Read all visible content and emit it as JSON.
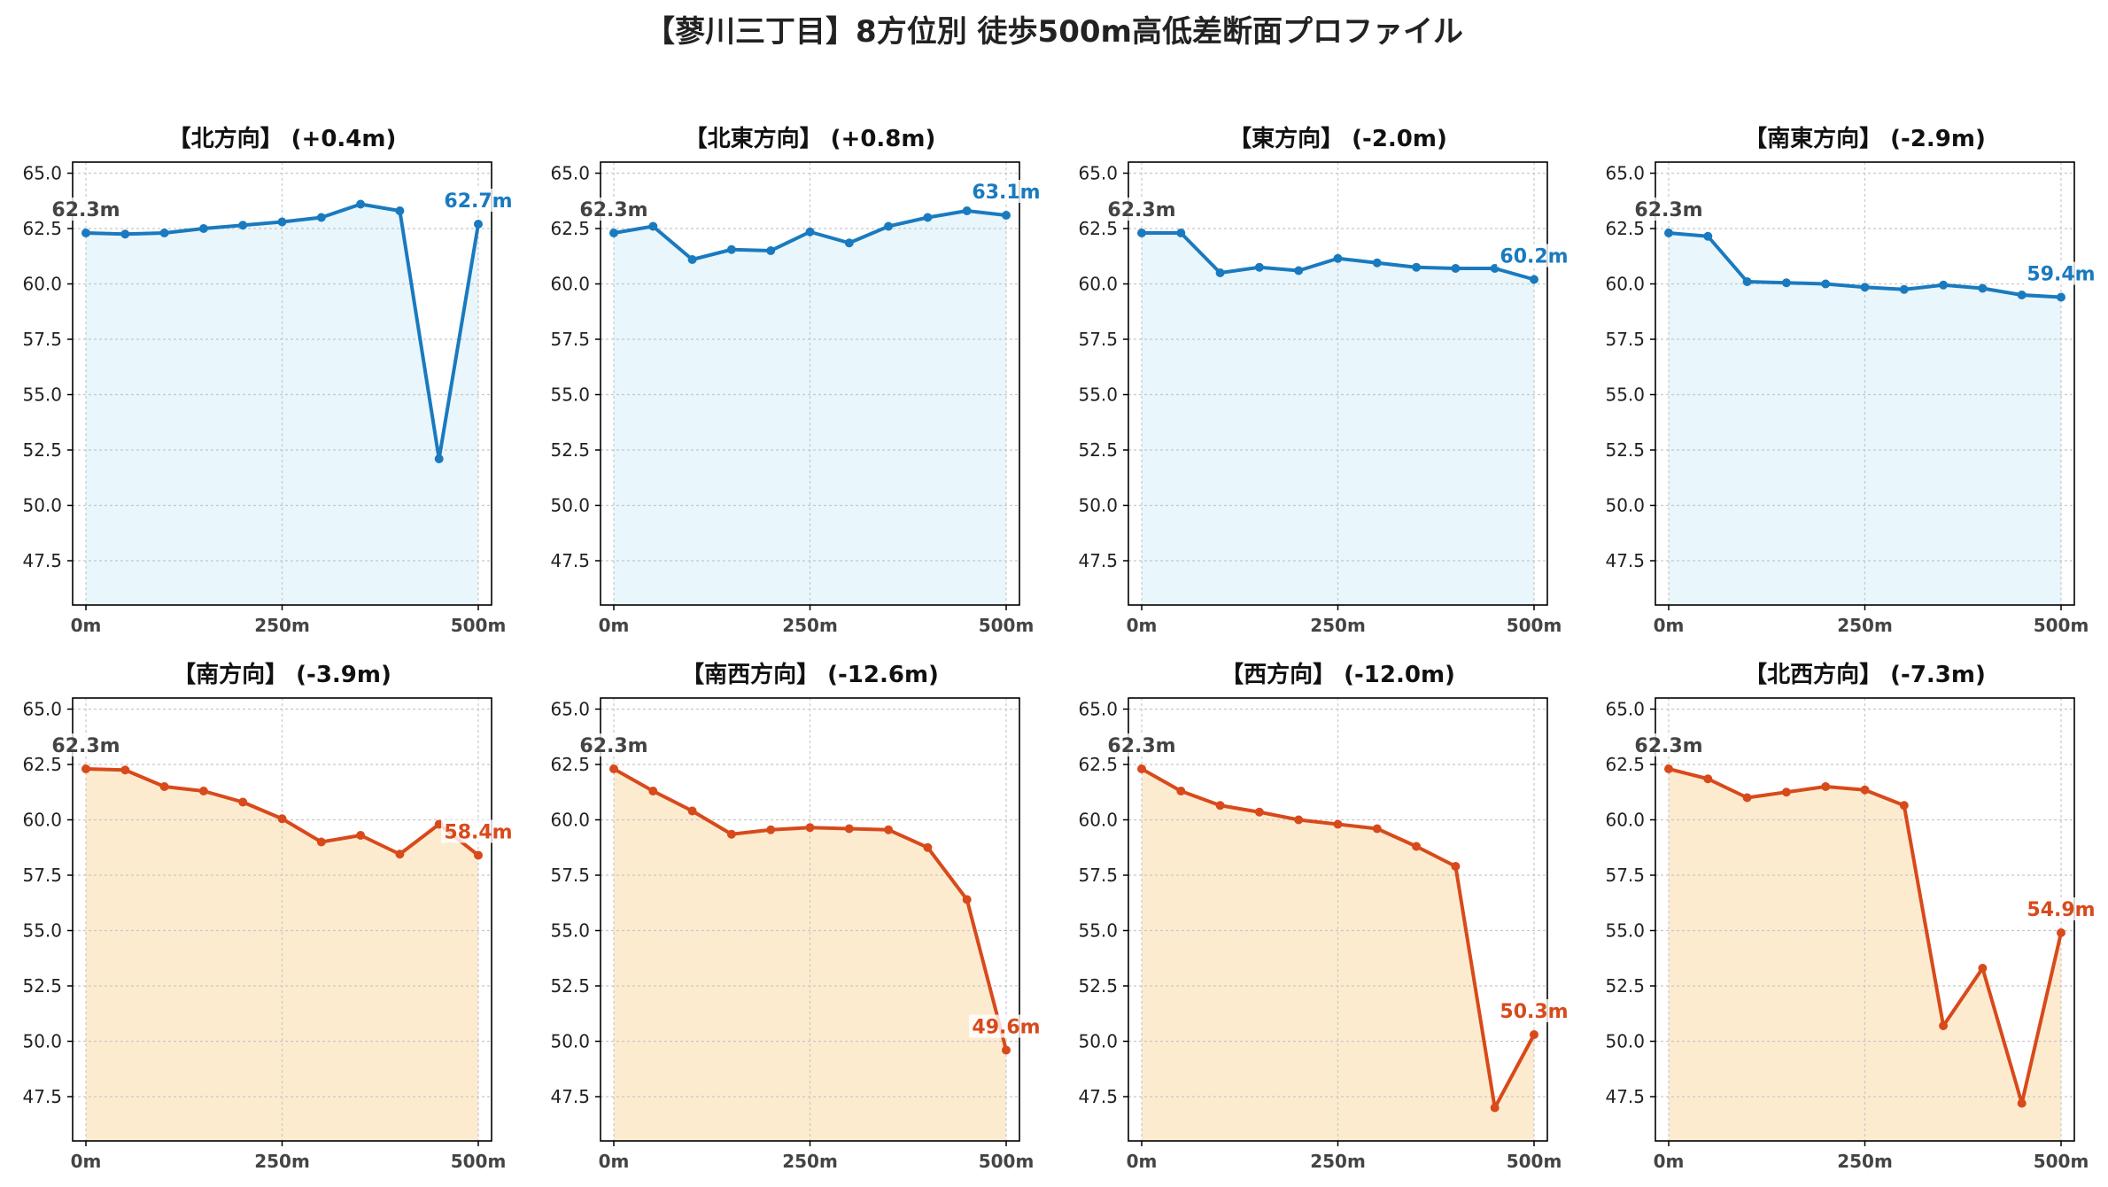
{
  "suptitle": "【蓼川三丁目】8方位別 徒歩500m高低差断面プロファイル",
  "colors": {
    "up_line": "#1a7abf",
    "up_fill": "#e9f6fb",
    "down_line": "#d84a1b",
    "down_fill": "#fdebd0",
    "start_label": "#444444",
    "grid": "#c8c8c8"
  },
  "chart_data": [
    {
      "type": "line",
      "title": "【北方向】 (+0.4m)",
      "trend": "up",
      "xlim": [
        0,
        500
      ],
      "ylim": [
        45.5,
        65.5
      ],
      "x": [
        0,
        50,
        100,
        150,
        200,
        250,
        300,
        350,
        400,
        450,
        500
      ],
      "y": [
        62.3,
        62.25,
        62.3,
        62.5,
        62.65,
        62.8,
        63.0,
        63.6,
        63.3,
        52.1,
        62.7
      ],
      "xticks": [
        0,
        250,
        500
      ],
      "xtick_labels": [
        "0m",
        "250m",
        "500m"
      ],
      "yticks": [
        47.5,
        50.0,
        52.5,
        55.0,
        57.5,
        60.0,
        62.5,
        65.0
      ],
      "ytick_labels": [
        "47.5",
        "50.0",
        "52.5",
        "55.0",
        "57.5",
        "60.0",
        "62.5",
        "65.0"
      ],
      "start_label": "62.3m",
      "end_label": "62.7m",
      "grid": true
    },
    {
      "type": "line",
      "title": "【北東方向】 (+0.8m)",
      "trend": "up",
      "xlim": [
        0,
        500
      ],
      "ylim": [
        45.5,
        65.5
      ],
      "x": [
        0,
        50,
        100,
        150,
        200,
        250,
        300,
        350,
        400,
        450,
        500
      ],
      "y": [
        62.3,
        62.6,
        61.1,
        61.55,
        61.5,
        62.35,
        61.85,
        62.6,
        63.0,
        63.3,
        63.1
      ],
      "xticks": [
        0,
        250,
        500
      ],
      "xtick_labels": [
        "0m",
        "250m",
        "500m"
      ],
      "yticks": [
        47.5,
        50.0,
        52.5,
        55.0,
        57.5,
        60.0,
        62.5,
        65.0
      ],
      "ytick_labels": [
        "47.5",
        "50.0",
        "52.5",
        "55.0",
        "57.5",
        "60.0",
        "62.5",
        "65.0"
      ],
      "start_label": "62.3m",
      "end_label": "63.1m",
      "grid": true
    },
    {
      "type": "line",
      "title": "【東方向】 (-2.0m)",
      "trend": "up",
      "xlim": [
        0,
        500
      ],
      "ylim": [
        45.5,
        65.5
      ],
      "x": [
        0,
        50,
        100,
        150,
        200,
        250,
        300,
        350,
        400,
        450,
        500
      ],
      "y": [
        62.3,
        62.3,
        60.5,
        60.75,
        60.6,
        61.15,
        60.95,
        60.75,
        60.7,
        60.7,
        60.2
      ],
      "xticks": [
        0,
        250,
        500
      ],
      "xtick_labels": [
        "0m",
        "250m",
        "500m"
      ],
      "yticks": [
        47.5,
        50.0,
        52.5,
        55.0,
        57.5,
        60.0,
        62.5,
        65.0
      ],
      "ytick_labels": [
        "47.5",
        "50.0",
        "52.5",
        "55.0",
        "57.5",
        "60.0",
        "62.5",
        "65.0"
      ],
      "start_label": "62.3m",
      "end_label": "60.2m",
      "grid": true
    },
    {
      "type": "line",
      "title": "【南東方向】 (-2.9m)",
      "trend": "up",
      "xlim": [
        0,
        500
      ],
      "ylim": [
        45.5,
        65.5
      ],
      "x": [
        0,
        50,
        100,
        150,
        200,
        250,
        300,
        350,
        400,
        450,
        500
      ],
      "y": [
        62.3,
        62.15,
        60.1,
        60.05,
        60.0,
        59.85,
        59.75,
        59.95,
        59.8,
        59.5,
        59.4
      ],
      "xticks": [
        0,
        250,
        500
      ],
      "xtick_labels": [
        "0m",
        "250m",
        "500m"
      ],
      "yticks": [
        47.5,
        50.0,
        52.5,
        55.0,
        57.5,
        60.0,
        62.5,
        65.0
      ],
      "ytick_labels": [
        "47.5",
        "50.0",
        "52.5",
        "55.0",
        "57.5",
        "60.0",
        "62.5",
        "65.0"
      ],
      "start_label": "62.3m",
      "end_label": "59.4m",
      "grid": true
    },
    {
      "type": "line",
      "title": "【南方向】 (-3.9m)",
      "trend": "down",
      "xlim": [
        0,
        500
      ],
      "ylim": [
        45.5,
        65.5
      ],
      "x": [
        0,
        50,
        100,
        150,
        200,
        250,
        300,
        350,
        400,
        450,
        500
      ],
      "y": [
        62.3,
        62.25,
        61.5,
        61.3,
        60.8,
        60.05,
        59.0,
        59.3,
        58.45,
        59.8,
        58.4
      ],
      "xticks": [
        0,
        250,
        500
      ],
      "xtick_labels": [
        "0m",
        "250m",
        "500m"
      ],
      "yticks": [
        47.5,
        50.0,
        52.5,
        55.0,
        57.5,
        60.0,
        62.5,
        65.0
      ],
      "ytick_labels": [
        "47.5",
        "50.0",
        "52.5",
        "55.0",
        "57.5",
        "60.0",
        "62.5",
        "65.0"
      ],
      "start_label": "62.3m",
      "end_label": "58.4m",
      "grid": true
    },
    {
      "type": "line",
      "title": "【南西方向】 (-12.6m)",
      "trend": "down",
      "xlim": [
        0,
        500
      ],
      "ylim": [
        45.5,
        65.5
      ],
      "x": [
        0,
        50,
        100,
        150,
        200,
        250,
        300,
        350,
        400,
        450,
        500
      ],
      "y": [
        62.3,
        61.3,
        60.4,
        59.35,
        59.55,
        59.65,
        59.6,
        59.55,
        58.75,
        56.4,
        49.6
      ],
      "xticks": [
        0,
        250,
        500
      ],
      "xtick_labels": [
        "0m",
        "250m",
        "500m"
      ],
      "yticks": [
        47.5,
        50.0,
        52.5,
        55.0,
        57.5,
        60.0,
        62.5,
        65.0
      ],
      "ytick_labels": [
        "47.5",
        "50.0",
        "52.5",
        "55.0",
        "57.5",
        "60.0",
        "62.5",
        "65.0"
      ],
      "start_label": "62.3m",
      "end_label": "49.6m",
      "grid": true
    },
    {
      "type": "line",
      "title": "【西方向】 (-12.0m)",
      "trend": "down",
      "xlim": [
        0,
        500
      ],
      "ylim": [
        45.5,
        65.5
      ],
      "x": [
        0,
        50,
        100,
        150,
        200,
        250,
        300,
        350,
        400,
        450,
        500
      ],
      "y": [
        62.3,
        61.3,
        60.65,
        60.35,
        60.0,
        59.8,
        59.6,
        58.8,
        57.9,
        47.0,
        50.3
      ],
      "xticks": [
        0,
        250,
        500
      ],
      "xtick_labels": [
        "0m",
        "250m",
        "500m"
      ],
      "yticks": [
        47.5,
        50.0,
        52.5,
        55.0,
        57.5,
        60.0,
        62.5,
        65.0
      ],
      "ytick_labels": [
        "47.5",
        "50.0",
        "52.5",
        "55.0",
        "57.5",
        "60.0",
        "62.5",
        "65.0"
      ],
      "start_label": "62.3m",
      "end_label": "50.3m",
      "grid": true
    },
    {
      "type": "line",
      "title": "【北西方向】 (-7.3m)",
      "trend": "down",
      "xlim": [
        0,
        500
      ],
      "ylim": [
        45.5,
        65.5
      ],
      "x": [
        0,
        50,
        100,
        150,
        200,
        250,
        300,
        350,
        400,
        450,
        500
      ],
      "y": [
        62.3,
        61.85,
        61.0,
        61.25,
        61.5,
        61.35,
        60.65,
        50.7,
        53.3,
        47.2,
        54.9
      ],
      "xticks": [
        0,
        250,
        500
      ],
      "xtick_labels": [
        "0m",
        "250m",
        "500m"
      ],
      "yticks": [
        47.5,
        50.0,
        52.5,
        55.0,
        57.5,
        60.0,
        62.5,
        65.0
      ],
      "ytick_labels": [
        "47.5",
        "50.0",
        "52.5",
        "55.0",
        "57.5",
        "60.0",
        "62.5",
        "65.0"
      ],
      "start_label": "62.3m",
      "end_label": "54.9m",
      "grid": true
    }
  ]
}
